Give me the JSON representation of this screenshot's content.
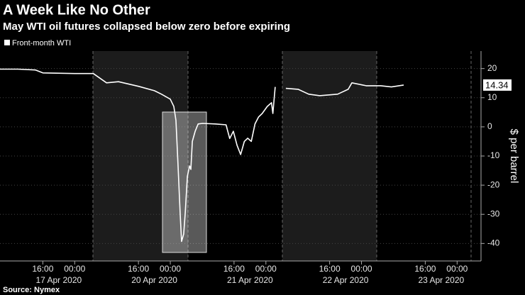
{
  "chart_data": {
    "type": "line",
    "title": "A Week Like No Other",
    "subtitle": "May WTI oil futures collapsed below zero before expiring",
    "source": "Source: Nymex",
    "ylabel": "$ per barrel",
    "legend": "top-left",
    "grid": true,
    "x_break": [
      "2020-04-18 00:00",
      "2020-04-20 00:00"
    ],
    "xlim": [
      "2020-04-17 05:15",
      "2020-04-24 06:00"
    ],
    "xticks": [
      {
        "value": "2020-04-17 16:00",
        "label": "16:00"
      },
      {
        "value": "2020-04-18 00:00",
        "label": "00:00"
      },
      {
        "value": "2020-04-20 16:00",
        "label": "16:00"
      },
      {
        "value": "2020-04-21 00:00",
        "label": "00:00"
      },
      {
        "value": "2020-04-21 16:00",
        "label": "16:00"
      },
      {
        "value": "2020-04-22 00:00",
        "label": "00:00"
      },
      {
        "value": "2020-04-22 16:00",
        "label": "16:00"
      },
      {
        "value": "2020-04-23 00:00",
        "label": "00:00"
      },
      {
        "value": "2020-04-23 16:00",
        "label": "16:00"
      },
      {
        "value": "2020-04-24 00:00",
        "label": "00:00"
      }
    ],
    "date_ticks": [
      {
        "value": "2020-04-17 20:00",
        "label": "17 Apr 2020"
      },
      {
        "value": "2020-04-20 20:00",
        "label": "20 Apr 2020"
      },
      {
        "value": "2020-04-21 20:00",
        "label": "21 Apr 2020"
      },
      {
        "value": "2020-04-22 20:00",
        "label": "22 Apr 2020"
      },
      {
        "value": "2020-04-23 20:00",
        "label": "23 Apr 2020"
      }
    ],
    "ylim": [
      -46,
      26
    ],
    "yticks": [
      20,
      10,
      0,
      -10,
      -20,
      -30,
      -40
    ],
    "x": [
      "2020-04-17 05:15",
      "2020-04-17 09:45",
      "2020-04-17 14:10",
      "2020-04-17 16:00",
      "2020-04-18 00:00",
      "2020-04-20 04:40",
      "2020-04-20 08:00",
      "2020-04-20 11:00",
      "2020-04-20 16:00",
      "2020-04-20 20:00",
      "2020-04-20 21:47",
      "2020-04-21 00:00",
      "2020-04-21 00:53",
      "2020-04-21 01:25",
      "2020-04-21 01:55",
      "2020-04-21 02:28",
      "2020-04-21 02:50",
      "2020-04-21 03:22",
      "2020-04-21 03:45",
      "2020-04-21 04:17",
      "2020-04-21 04:50",
      "2020-04-21 05:10",
      "2020-04-21 05:32",
      "2020-04-21 06:15",
      "2020-04-21 07:00",
      "2020-04-21 08:05",
      "2020-04-21 11:20",
      "2020-04-21 14:00",
      "2020-04-21 14:55",
      "2020-04-21 15:50",
      "2020-04-21 16:45",
      "2020-04-21 17:40",
      "2020-04-21 18:35",
      "2020-04-21 19:25",
      "2020-04-21 20:20",
      "2020-04-21 21:15",
      "2020-04-21 22:10",
      "2020-04-21 23:05",
      "2020-04-22 00:20",
      "2020-04-22 01:25",
      "2020-04-22 01:45",
      "2020-04-22 02:20",
      "2020-04-22 02:45",
      "2020-04-22 05:00",
      "2020-04-22 08:05",
      "2020-04-22 10:45",
      "2020-04-22 13:30",
      "2020-04-22 18:00",
      "2020-04-22 20:40",
      "2020-04-22 21:35",
      "2020-04-23 01:10",
      "2020-04-23 04:50",
      "2020-04-23 07:30",
      "2020-04-23 10:35"
    ],
    "series": [
      {
        "name": "Front-month WTI",
        "color": "#ffffff",
        "values": [
          19.8,
          19.8,
          19.5,
          18.5,
          18.3,
          18.3,
          15.1,
          15.5,
          13.9,
          12.4,
          11.2,
          9.5,
          7,
          2.2,
          -12.4,
          -29.5,
          -39.3,
          -36.8,
          -29.5,
          -17,
          -13.4,
          -14.6,
          -5,
          -1.5,
          1,
          1.2,
          1,
          0.7,
          -4,
          -1.5,
          -6.3,
          -9.5,
          -5,
          -3.9,
          -5,
          1,
          3.4,
          4.6,
          7,
          8.3,
          4.6,
          13.7,
          null,
          13.2,
          12.9,
          11.2,
          10.7,
          11.2,
          12.9,
          15.1,
          14.1,
          14.1,
          13.7,
          14.34
        ],
        "last_label": "14.34"
      }
    ]
  }
}
